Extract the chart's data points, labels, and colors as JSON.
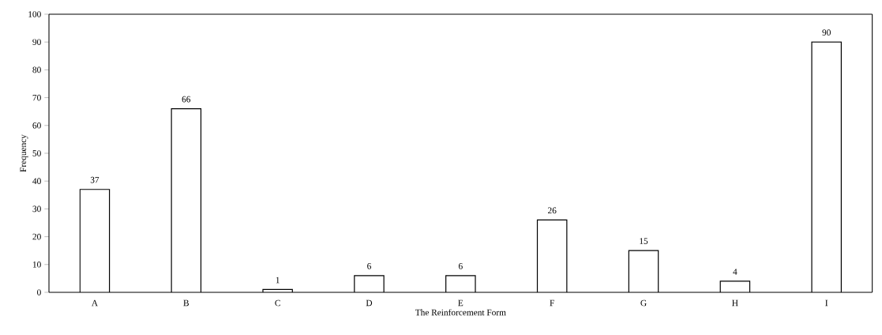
{
  "chart_data": {
    "type": "bar",
    "xlabel": "The Reinforcement Form",
    "ylabel": "Frequency",
    "categories": [
      "A",
      "B",
      "C",
      "D",
      "E",
      "F",
      "G",
      "H",
      "I"
    ],
    "values": [
      37,
      66,
      1,
      6,
      6,
      26,
      15,
      4,
      90
    ],
    "color": "#ffffff",
    "ylim": [
      0,
      100
    ],
    "yticks": [
      0,
      10,
      20,
      30,
      40,
      50,
      60,
      70,
      80,
      90,
      100
    ],
    "data_labels": true,
    "grid": false
  }
}
